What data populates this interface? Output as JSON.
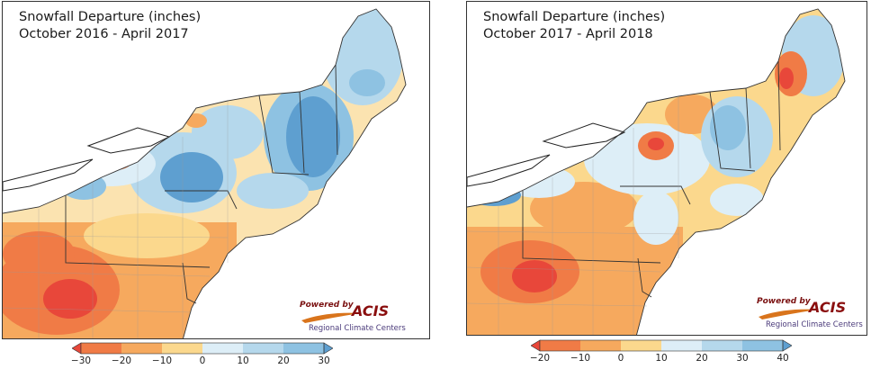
{
  "panels": [
    {
      "title_line1": "Snowfall Departure (inches)",
      "title_line2": "October 2016 - April 2017",
      "logo": {
        "powered_by": "Powered by",
        "brand": "ACIS",
        "subtitle": "Regional Climate Centers"
      },
      "colorbar": {
        "ticks": [
          "−30",
          "−20",
          "−10",
          "0",
          "10",
          "20",
          "30"
        ],
        "tick_values": [
          -30,
          -20,
          -10,
          0,
          10,
          20,
          30
        ],
        "colors": [
          "#e8473a",
          "#f07b46",
          "#f6a95e",
          "#fbd88d",
          "#ddeef7",
          "#b5d8ec",
          "#8ec2e2",
          "#5e9fd0"
        ],
        "extend": "both"
      }
    },
    {
      "title_line1": "Snowfall Departure (inches)",
      "title_line2": "October 2017 - April 2018",
      "logo": {
        "powered_by": "Powered by",
        "brand": "ACIS",
        "subtitle": "Regional Climate Centers"
      },
      "colorbar": {
        "ticks": [
          "−20",
          "−10",
          "0",
          "10",
          "20",
          "30",
          "40"
        ],
        "tick_values": [
          -20,
          -10,
          0,
          10,
          20,
          30,
          40
        ],
        "colors": [
          "#e8473a",
          "#f07b46",
          "#f6a95e",
          "#fbd88d",
          "#ddeef7",
          "#b5d8ec",
          "#8ec2e2",
          "#5e9fd0"
        ],
        "extend": "both"
      }
    }
  ]
}
